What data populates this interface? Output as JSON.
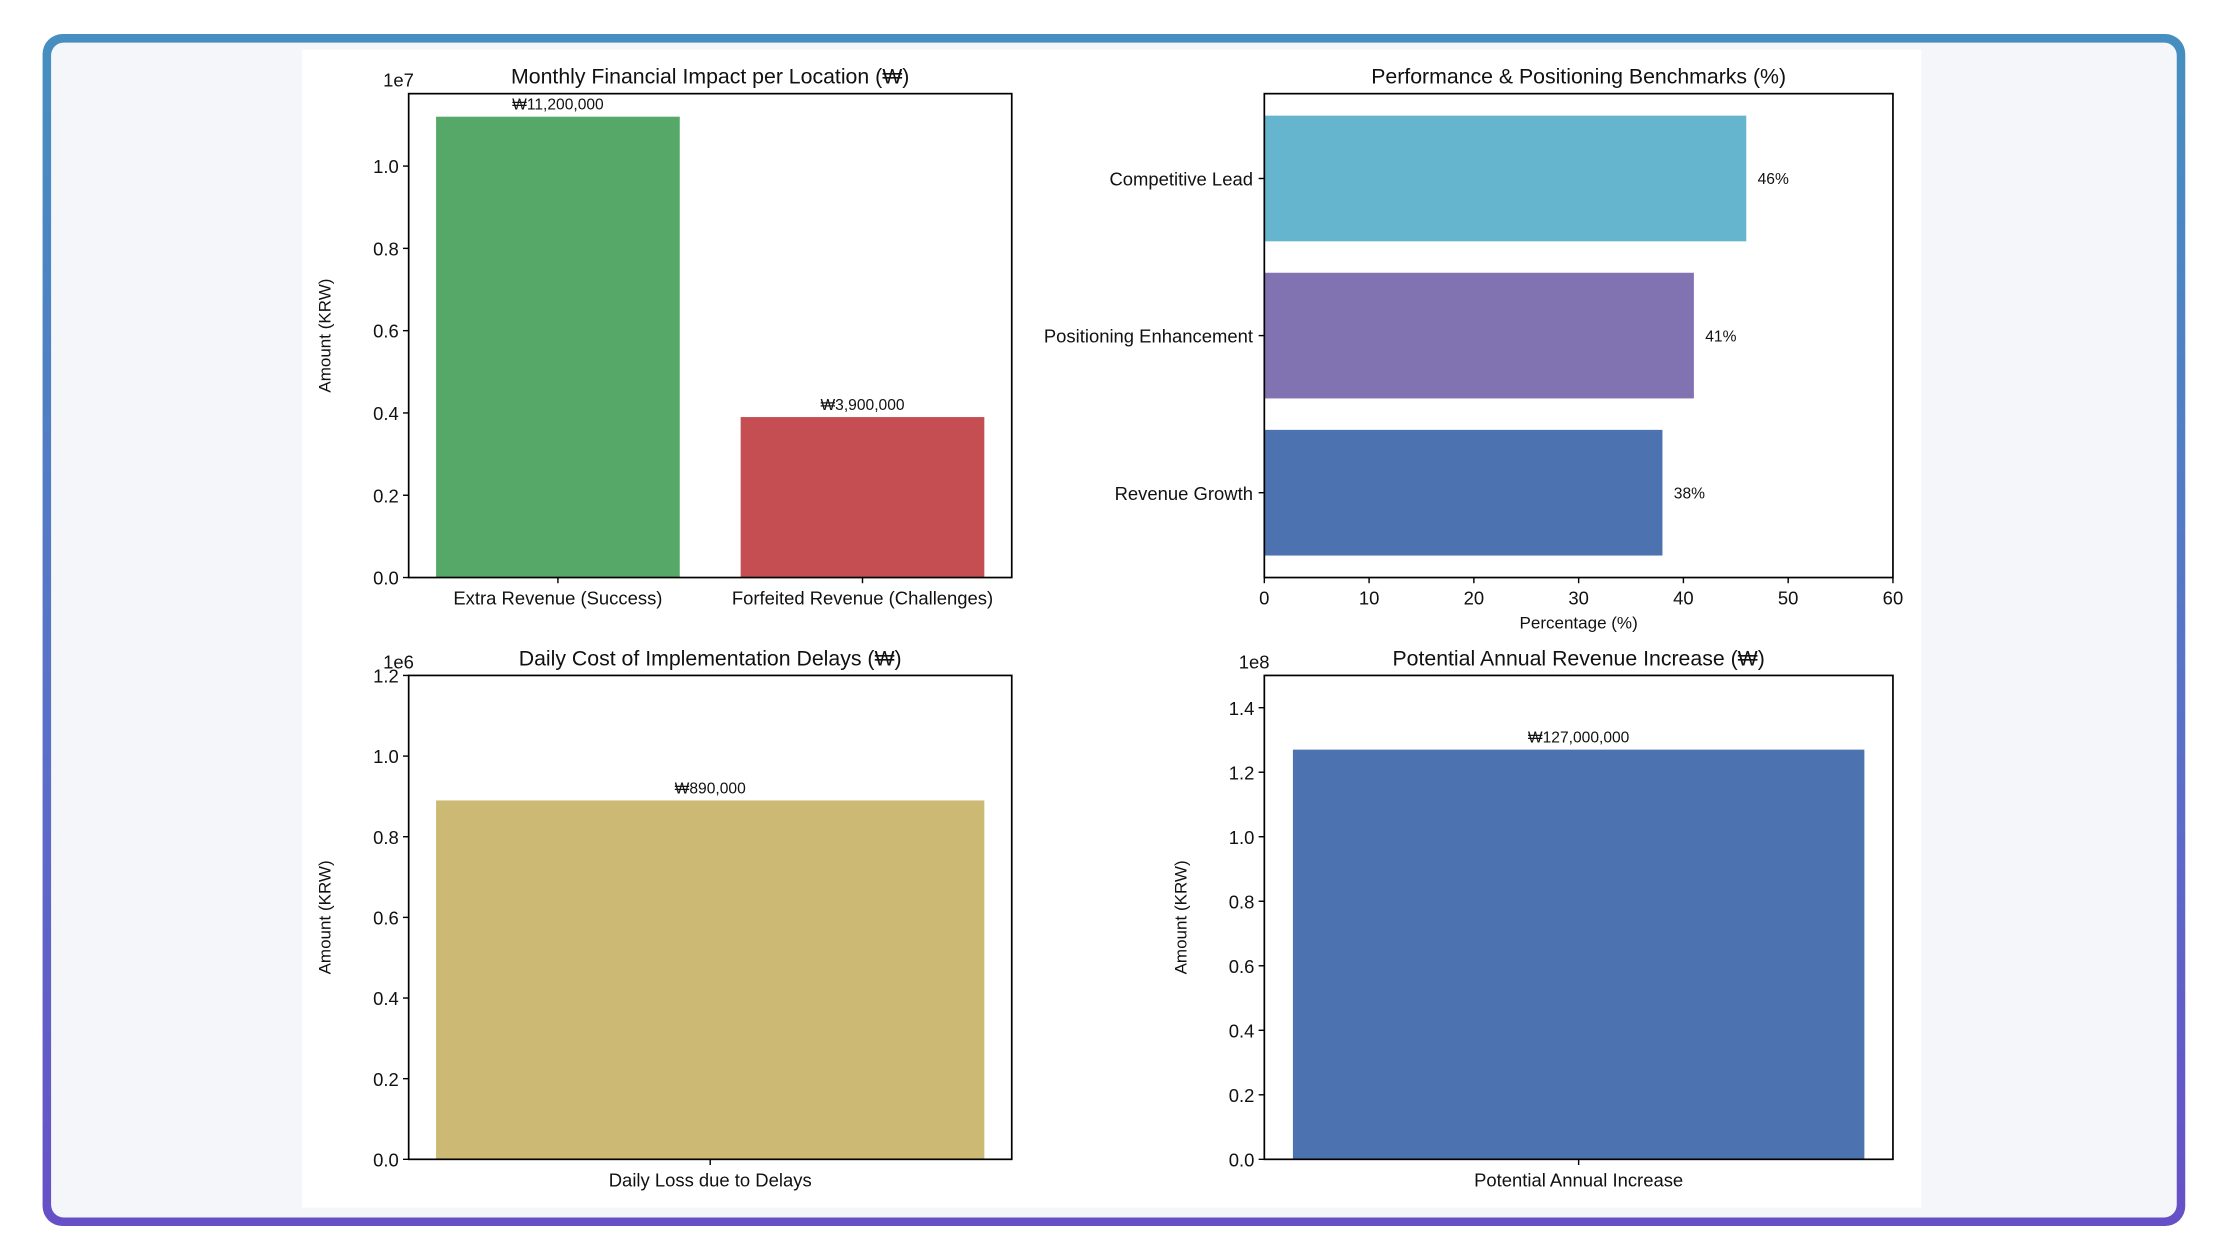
{
  "chart_data": [
    {
      "type": "bar",
      "title": "Monthly Financial Impact per Location (₩)",
      "ylabel": "Amount (KRW)",
      "xlabel": "",
      "offset_label": "1e7",
      "categories": [
        "Extra Revenue (Success)",
        "Forfeited Revenue (Challenges)"
      ],
      "values": [
        11200000,
        3900000
      ],
      "data_labels": [
        "₩11,200,000",
        "₩3,900,000"
      ],
      "colors": [
        "#55a868",
        "#c44e52"
      ],
      "ylim": [
        0,
        11760000
      ],
      "yticks": [
        0,
        2000000,
        4000000,
        6000000,
        8000000,
        10000000
      ],
      "ytick_labels": [
        "0.0",
        "0.2",
        "0.4",
        "0.6",
        "0.8",
        "1.0"
      ],
      "grid": false
    },
    {
      "type": "barh",
      "title": "Performance & Positioning Benchmarks (%)",
      "xlabel": "Percentage (%)",
      "ylabel": "",
      "categories": [
        "Competitive Lead",
        "Positioning Enhancement",
        "Revenue Growth"
      ],
      "values": [
        46,
        41,
        38
      ],
      "data_labels": [
        "46%",
        "41%",
        "38%"
      ],
      "colors": [
        "#64b5cd",
        "#8172b2",
        "#4c72b0"
      ],
      "xlim": [
        0,
        60
      ],
      "xticks": [
        0,
        10,
        20,
        30,
        40,
        50,
        60
      ],
      "xtick_labels": [
        "0",
        "10",
        "20",
        "30",
        "40",
        "50",
        "60"
      ],
      "grid": false
    },
    {
      "type": "bar",
      "title": "Daily Cost of Implementation Delays (₩)",
      "ylabel": "Amount (KRW)",
      "xlabel": "",
      "offset_label": "1e6",
      "categories": [
        "Daily Loss due to Delays"
      ],
      "values": [
        890000
      ],
      "data_labels": [
        "₩890,000"
      ],
      "colors": [
        "#ccb974"
      ],
      "ylim": [
        0,
        1200000
      ],
      "yticks": [
        0,
        200000,
        400000,
        600000,
        800000,
        1000000,
        1200000
      ],
      "ytick_labels": [
        "0.0",
        "0.2",
        "0.4",
        "0.6",
        "0.8",
        "1.0",
        "1.2"
      ],
      "grid": false
    },
    {
      "type": "bar",
      "title": "Potential Annual Revenue Increase (₩)",
      "ylabel": "Amount (KRW)",
      "xlabel": "",
      "offset_label": "1e8",
      "categories": [
        "Potential Annual Increase"
      ],
      "values": [
        127000000
      ],
      "data_labels": [
        "₩127,000,000"
      ],
      "colors": [
        "#4c72b0"
      ],
      "ylim": [
        0,
        150000000
      ],
      "yticks": [
        0,
        20000000,
        40000000,
        60000000,
        80000000,
        100000000,
        120000000,
        140000000
      ],
      "ytick_labels": [
        "0.0",
        "0.2",
        "0.4",
        "0.6",
        "0.8",
        "1.0",
        "1.2",
        "1.4"
      ],
      "grid": false
    }
  ]
}
